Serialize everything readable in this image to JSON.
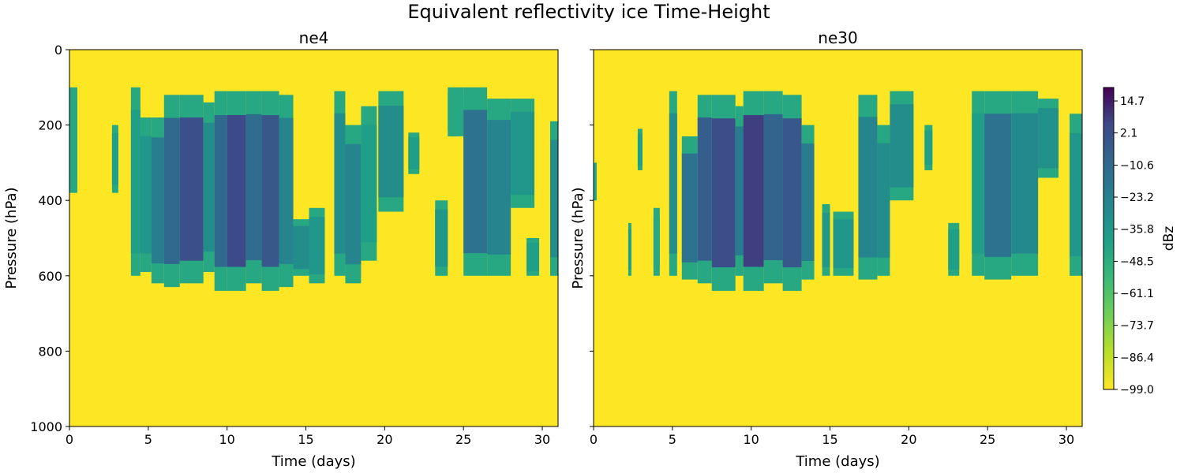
{
  "chart_data": {
    "type": "heatmap",
    "suptitle": "Equivalent reflectivity ice Time-Height",
    "colorbar": {
      "label": "dBz",
      "range": [
        -99.0,
        20.0
      ],
      "ticks": [
        "14.7",
        "2.1",
        "−10.6",
        "−23.2",
        "−35.8",
        "−48.5",
        "−61.1",
        "−73.7",
        "−86.4",
        "−99.0"
      ],
      "tick_values": [
        14.7,
        2.1,
        -10.6,
        -23.2,
        -35.8,
        -48.5,
        -61.1,
        -73.7,
        -86.4,
        -99.0
      ],
      "colormap": "viridis (reversed: yellow = -99, purple = max)"
    },
    "panels": [
      {
        "title": "ne4",
        "xlabel": "Time (days)",
        "ylabel": "Pressure (hPa)",
        "xlim": [
          0,
          31
        ],
        "ylim": [
          1000,
          0
        ],
        "xticks": [
          "0",
          "5",
          "10",
          "15",
          "20",
          "25",
          "30"
        ],
        "yticks": [
          "0",
          "200",
          "400",
          "600",
          "800",
          "1000"
        ],
        "background_dbz": -99,
        "cloud_columns": [
          {
            "t0": 0.0,
            "t1": 0.5,
            "p_top": 100,
            "p_bot": 380,
            "dbz": -45
          },
          {
            "t0": 2.7,
            "t1": 3.1,
            "p_top": 200,
            "p_bot": 380,
            "dbz": -40
          },
          {
            "t0": 3.9,
            "t1": 4.5,
            "p_top": 100,
            "p_bot": 600,
            "dbz": -40
          },
          {
            "t0": 4.5,
            "t1": 5.2,
            "p_top": 180,
            "p_bot": 590,
            "dbz": -35
          },
          {
            "t0": 5.2,
            "t1": 6.0,
            "p_top": 180,
            "p_bot": 620,
            "dbz": -22
          },
          {
            "t0": 6.0,
            "t1": 7.0,
            "p_top": 120,
            "p_bot": 630,
            "dbz": -10
          },
          {
            "t0": 7.0,
            "t1": 8.5,
            "p_top": 120,
            "p_bot": 620,
            "dbz": 2
          },
          {
            "t0": 8.5,
            "t1": 9.2,
            "p_top": 140,
            "p_bot": 590,
            "dbz": -30
          },
          {
            "t0": 9.2,
            "t1": 10.0,
            "p_top": 110,
            "p_bot": 640,
            "dbz": -10
          },
          {
            "t0": 10.0,
            "t1": 11.2,
            "p_top": 110,
            "p_bot": 640,
            "dbz": 5
          },
          {
            "t0": 11.2,
            "t1": 12.2,
            "p_top": 110,
            "p_bot": 620,
            "dbz": -12
          },
          {
            "t0": 12.2,
            "t1": 13.3,
            "p_top": 110,
            "p_bot": 640,
            "dbz": -2
          },
          {
            "t0": 13.3,
            "t1": 14.2,
            "p_top": 120,
            "p_bot": 630,
            "dbz": -25
          },
          {
            "t0": 14.2,
            "t1": 15.2,
            "p_top": 450,
            "p_bot": 600,
            "dbz": -30
          },
          {
            "t0": 15.2,
            "t1": 16.2,
            "p_top": 420,
            "p_bot": 620,
            "dbz": -35
          },
          {
            "t0": 16.8,
            "t1": 17.5,
            "p_top": 110,
            "p_bot": 600,
            "dbz": -30
          },
          {
            "t0": 17.5,
            "t1": 18.5,
            "p_top": 200,
            "p_bot": 620,
            "dbz": -25
          },
          {
            "t0": 18.5,
            "t1": 19.5,
            "p_top": 150,
            "p_bot": 560,
            "dbz": -40
          },
          {
            "t0": 19.6,
            "t1": 21.2,
            "p_top": 110,
            "p_bot": 430,
            "dbz": -30
          },
          {
            "t0": 21.5,
            "t1": 22.2,
            "p_top": 220,
            "p_bot": 330,
            "dbz": -40
          },
          {
            "t0": 23.2,
            "t1": 24.0,
            "p_top": 400,
            "p_bot": 600,
            "dbz": -35
          },
          {
            "t0": 24.0,
            "t1": 25.0,
            "p_top": 100,
            "p_bot": 230,
            "dbz": -45
          },
          {
            "t0": 25.0,
            "t1": 26.5,
            "p_top": 100,
            "p_bot": 600,
            "dbz": -15
          },
          {
            "t0": 26.5,
            "t1": 28.0,
            "p_top": 130,
            "p_bot": 600,
            "dbz": -25
          },
          {
            "t0": 28.0,
            "t1": 29.5,
            "p_top": 130,
            "p_bot": 420,
            "dbz": -35
          },
          {
            "t0": 29.0,
            "t1": 29.8,
            "p_top": 500,
            "p_bot": 600,
            "dbz": -40
          },
          {
            "t0": 30.5,
            "t1": 31.0,
            "p_top": 190,
            "p_bot": 600,
            "dbz": -30
          }
        ]
      },
      {
        "title": "ne30",
        "xlabel": "Time (days)",
        "ylabel": "Pressure (hPa)",
        "xlim": [
          0,
          31
        ],
        "ylim": [
          1000,
          0
        ],
        "xticks": [
          "0",
          "5",
          "10",
          "15",
          "20",
          "25",
          "30"
        ],
        "yticks": [
          "0",
          "200",
          "400",
          "600",
          "800",
          "1000"
        ],
        "background_dbz": -99,
        "cloud_columns": [
          {
            "t0": 0.0,
            "t1": 0.2,
            "p_top": 300,
            "p_bot": 400,
            "dbz": -45
          },
          {
            "t0": 2.2,
            "t1": 2.4,
            "p_top": 460,
            "p_bot": 600,
            "dbz": -40
          },
          {
            "t0": 2.8,
            "t1": 3.1,
            "p_top": 210,
            "p_bot": 320,
            "dbz": -40
          },
          {
            "t0": 3.8,
            "t1": 4.2,
            "p_top": 420,
            "p_bot": 600,
            "dbz": -45
          },
          {
            "t0": 4.8,
            "t1": 5.3,
            "p_top": 110,
            "p_bot": 600,
            "dbz": -30
          },
          {
            "t0": 5.6,
            "t1": 6.6,
            "p_top": 230,
            "p_bot": 610,
            "dbz": -15
          },
          {
            "t0": 6.6,
            "t1": 7.5,
            "p_top": 120,
            "p_bot": 620,
            "dbz": -5
          },
          {
            "t0": 7.5,
            "t1": 9.0,
            "p_top": 120,
            "p_bot": 640,
            "dbz": 3
          },
          {
            "t0": 9.0,
            "t1": 9.5,
            "p_top": 150,
            "p_bot": 600,
            "dbz": -20
          },
          {
            "t0": 9.5,
            "t1": 10.8,
            "p_top": 110,
            "p_bot": 640,
            "dbz": 8
          },
          {
            "t0": 10.8,
            "t1": 12.0,
            "p_top": 110,
            "p_bot": 620,
            "dbz": -8
          },
          {
            "t0": 12.0,
            "t1": 13.2,
            "p_top": 120,
            "p_bot": 640,
            "dbz": -2
          },
          {
            "t0": 13.2,
            "t1": 14.0,
            "p_top": 200,
            "p_bot": 610,
            "dbz": -20
          },
          {
            "t0": 14.5,
            "t1": 15.0,
            "p_top": 410,
            "p_bot": 600,
            "dbz": -35
          },
          {
            "t0": 15.2,
            "t1": 16.5,
            "p_top": 430,
            "p_bot": 600,
            "dbz": -35
          },
          {
            "t0": 16.8,
            "t1": 18.0,
            "p_top": 120,
            "p_bot": 610,
            "dbz": -25
          },
          {
            "t0": 18.0,
            "t1": 18.8,
            "p_top": 200,
            "p_bot": 600,
            "dbz": -30
          },
          {
            "t0": 18.8,
            "t1": 20.3,
            "p_top": 110,
            "p_bot": 400,
            "dbz": -30
          },
          {
            "t0": 21.0,
            "t1": 21.5,
            "p_top": 200,
            "p_bot": 320,
            "dbz": -40
          },
          {
            "t0": 22.5,
            "t1": 23.2,
            "p_top": 460,
            "p_bot": 600,
            "dbz": -40
          },
          {
            "t0": 24.0,
            "t1": 24.8,
            "p_top": 110,
            "p_bot": 600,
            "dbz": -40
          },
          {
            "t0": 24.8,
            "t1": 26.5,
            "p_top": 110,
            "p_bot": 610,
            "dbz": -15
          },
          {
            "t0": 26.5,
            "t1": 28.2,
            "p_top": 110,
            "p_bot": 600,
            "dbz": -28
          },
          {
            "t0": 28.2,
            "t1": 29.5,
            "p_top": 130,
            "p_bot": 340,
            "dbz": -32
          },
          {
            "t0": 30.2,
            "t1": 31.0,
            "p_top": 170,
            "p_bot": 600,
            "dbz": -35
          }
        ]
      }
    ]
  }
}
